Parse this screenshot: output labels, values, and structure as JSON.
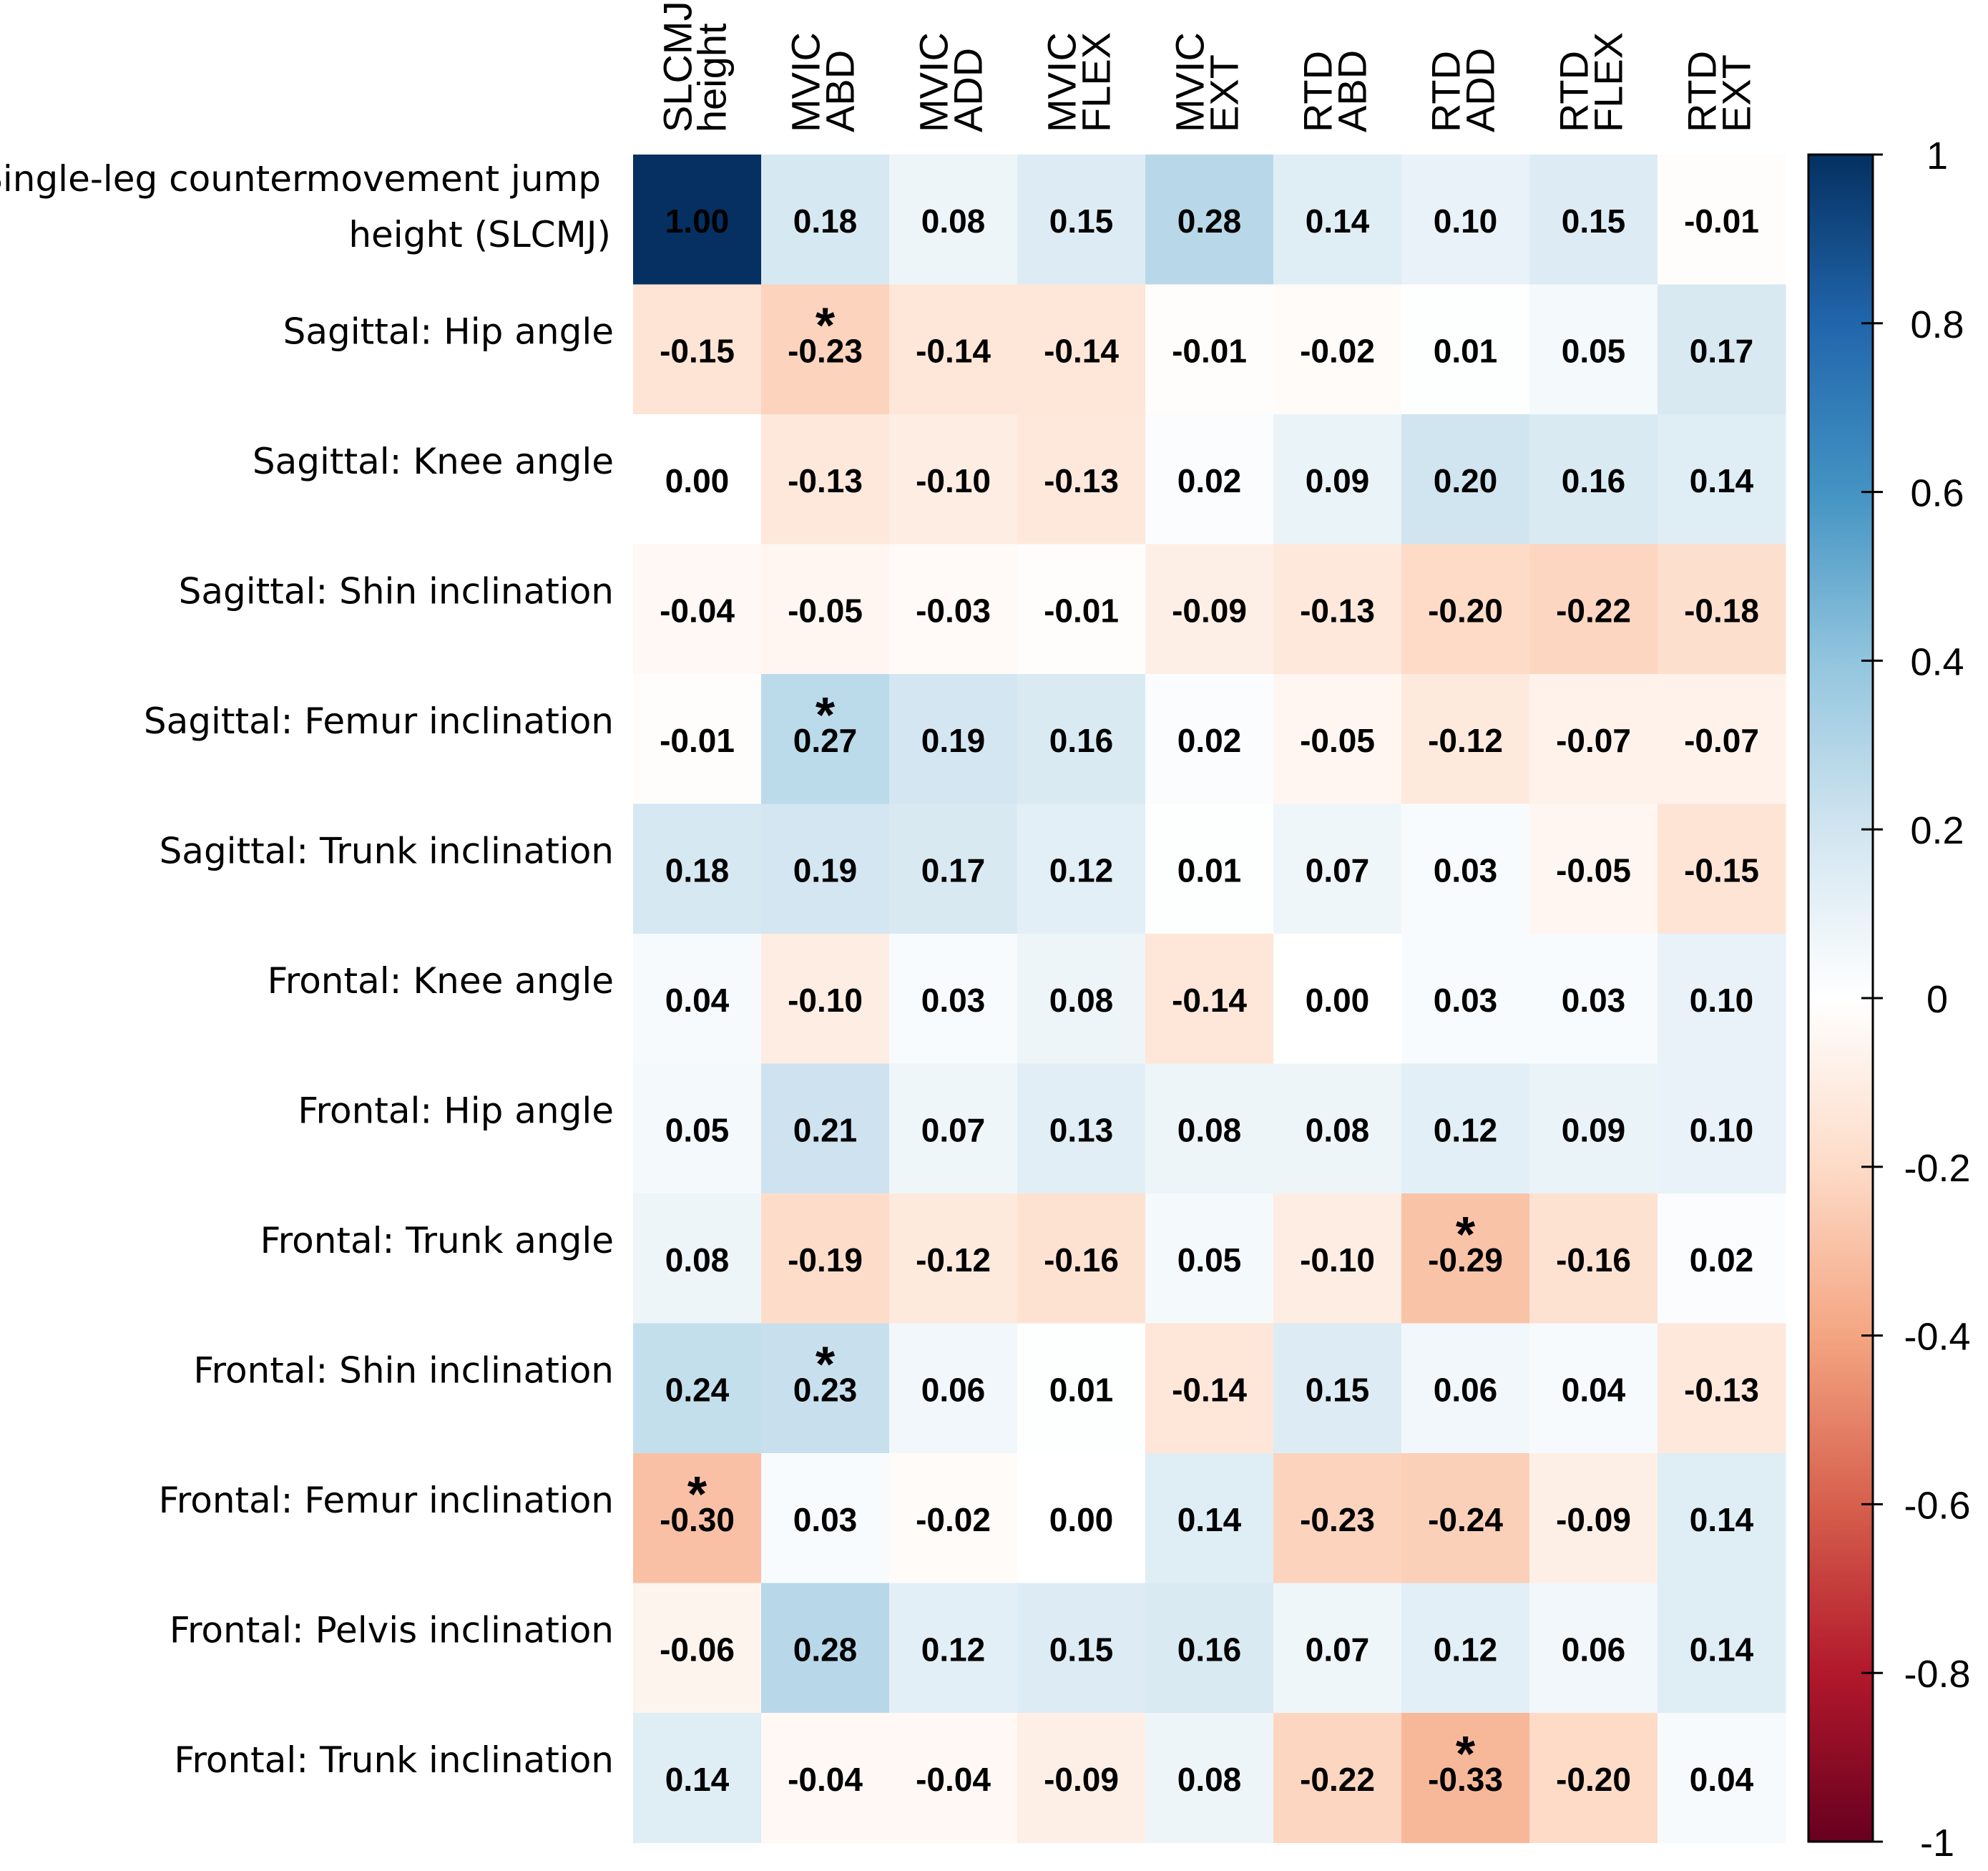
{
  "chart_data": {
    "type": "heatmap",
    "columns": [
      [
        "SLCMJ",
        "height"
      ],
      [
        "MVIC",
        "ABD"
      ],
      [
        "MVIC",
        "ADD"
      ],
      [
        "MVIC",
        "FLEX"
      ],
      [
        "MVIC",
        "EXT"
      ],
      [
        "RTD",
        "ABD"
      ],
      [
        "RTD",
        "ADD"
      ],
      [
        "RTD",
        "FLEX"
      ],
      [
        "RTD",
        "EXT"
      ]
    ],
    "rows": [
      [
        "Single-leg countermovement jump",
        "height (SLCMJ)"
      ],
      [
        "Sagittal: Hip angle"
      ],
      [
        "Sagittal: Knee angle"
      ],
      [
        "Sagittal: Shin inclination"
      ],
      [
        "Sagittal: Femur inclination"
      ],
      [
        "Sagittal: Trunk inclination"
      ],
      [
        "Frontal: Knee angle"
      ],
      [
        "Frontal: Hip angle"
      ],
      [
        "Frontal: Trunk angle"
      ],
      [
        "Frontal: Shin inclination"
      ],
      [
        "Frontal: Femur inclination"
      ],
      [
        "Frontal: Pelvis inclination"
      ],
      [
        "Frontal: Trunk inclination"
      ]
    ],
    "values": [
      [
        "1.00",
        "0.18",
        "0.08",
        "0.15",
        "0.28",
        "0.14",
        "0.10",
        "0.15",
        "-0.01"
      ],
      [
        "-0.15",
        "-0.23",
        "-0.14",
        "-0.14",
        "-0.01",
        "-0.02",
        "0.01",
        "0.05",
        "0.17"
      ],
      [
        "0.00",
        "-0.13",
        "-0.10",
        "-0.13",
        "0.02",
        "0.09",
        "0.20",
        "0.16",
        "0.14"
      ],
      [
        "-0.04",
        "-0.05",
        "-0.03",
        "-0.01",
        "-0.09",
        "-0.13",
        "-0.20",
        "-0.22",
        "-0.18"
      ],
      [
        "-0.01",
        "0.27",
        "0.19",
        "0.16",
        "0.02",
        "-0.05",
        "-0.12",
        "-0.07",
        "-0.07"
      ],
      [
        "0.18",
        "0.19",
        "0.17",
        "0.12",
        "0.01",
        "0.07",
        "0.03",
        "-0.05",
        "-0.15"
      ],
      [
        "0.04",
        "-0.10",
        "0.03",
        "0.08",
        "-0.14",
        "0.00",
        "0.03",
        "0.03",
        "0.10"
      ],
      [
        "0.05",
        "0.21",
        "0.07",
        "0.13",
        "0.08",
        "0.08",
        "0.12",
        "0.09",
        "0.10"
      ],
      [
        "0.08",
        "-0.19",
        "-0.12",
        "-0.16",
        "0.05",
        "-0.10",
        "-0.29",
        "-0.16",
        "0.02"
      ],
      [
        "0.24",
        "0.23",
        "0.06",
        "0.01",
        "-0.14",
        "0.15",
        "0.06",
        "0.04",
        "-0.13"
      ],
      [
        "-0.30",
        "0.03",
        "-0.02",
        "0.00",
        "0.14",
        "-0.23",
        "-0.24",
        "-0.09",
        "0.14"
      ],
      [
        "-0.06",
        "0.28",
        "0.12",
        "0.15",
        "0.16",
        "0.07",
        "0.12",
        "0.06",
        "0.14"
      ],
      [
        "0.14",
        "-0.04",
        "-0.04",
        "-0.09",
        "0.08",
        "-0.22",
        "-0.33",
        "-0.20",
        "0.04"
      ]
    ],
    "significance_marker": "*",
    "significant_cells": [
      [
        1,
        1
      ],
      [
        4,
        1
      ],
      [
        8,
        6
      ],
      [
        9,
        1
      ],
      [
        10,
        0
      ],
      [
        12,
        6
      ]
    ],
    "colorbar": {
      "range": [
        -1,
        1
      ],
      "ticks": [
        {
          "value": 1,
          "label": "1"
        },
        {
          "value": 0.8,
          "label": "0.8"
        },
        {
          "value": 0.6,
          "label": "0.6"
        },
        {
          "value": 0.4,
          "label": "0.4"
        },
        {
          "value": 0.2,
          "label": "0.2"
        },
        {
          "value": 0,
          "label": "0"
        },
        {
          "value": -0.2,
          "label": "-0.2"
        },
        {
          "value": -0.4,
          "label": "-0.4"
        },
        {
          "value": -0.6,
          "label": "-0.6"
        },
        {
          "value": -0.8,
          "label": "-0.8"
        },
        {
          "value": -1,
          "label": "-1"
        }
      ],
      "colors": {
        "neg_1": "#67001f",
        "neg_08": "#b2182b",
        "neg_06": "#d6604d",
        "neg_04": "#f4a582",
        "neg_02": "#fddbc7",
        "zero": "#ffffff",
        "pos_02": "#d1e5f0",
        "pos_04": "#92c5de",
        "pos_06": "#4393c3",
        "pos_08": "#2166ac",
        "pos_1": "#053061"
      }
    }
  }
}
